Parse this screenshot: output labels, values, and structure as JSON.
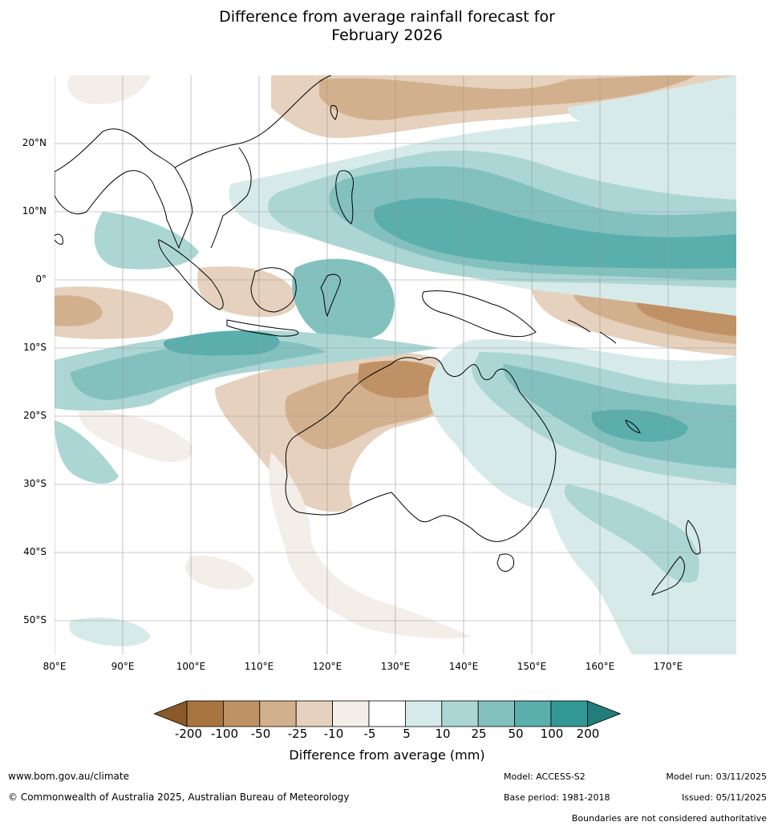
{
  "title": {
    "line1": "Difference from average rainfall forecast for",
    "line2": "February 2026"
  },
  "map": {
    "latitude_labels": [
      "20°N",
      "10°N",
      "0°",
      "10°S",
      "20°S",
      "30°S",
      "40°S",
      "50°S"
    ],
    "longitude_labels": [
      "80°E",
      "90°E",
      "100°E",
      "110°E",
      "120°E",
      "130°E",
      "140°E",
      "150°E",
      "160°E",
      "170°E"
    ],
    "extent": {
      "lon_min": 80,
      "lon_max": 180,
      "lat_min": -55,
      "lat_max": 30
    }
  },
  "legend": {
    "title": "Difference from average (mm)",
    "ticks": [
      "-200",
      "-100",
      "-50",
      "-25",
      "-10",
      "-5",
      "5",
      "10",
      "25",
      "50",
      "100",
      "200"
    ],
    "colors": [
      "#8b5a2b",
      "#a87440",
      "#c09165",
      "#d3b08d",
      "#e5d1bd",
      "#f3eee8",
      "#ffffff",
      "#d6ebe9",
      "#acd6d4",
      "#83c1bf",
      "#5aaeac",
      "#329896",
      "#227d7b"
    ]
  },
  "footer": {
    "website": "www.bom.gov.au/climate",
    "copyright": "© Commonwealth of Australia 2025, Australian Bureau of Meteorology",
    "model": "Model: ACCESS-S2",
    "base_period": "Base period: 1981-2018",
    "model_run": "Model run: 03/11/2025",
    "issued": "Issued: 05/11/2025",
    "disclaimer": "Boundaries are not considered authoritative"
  }
}
